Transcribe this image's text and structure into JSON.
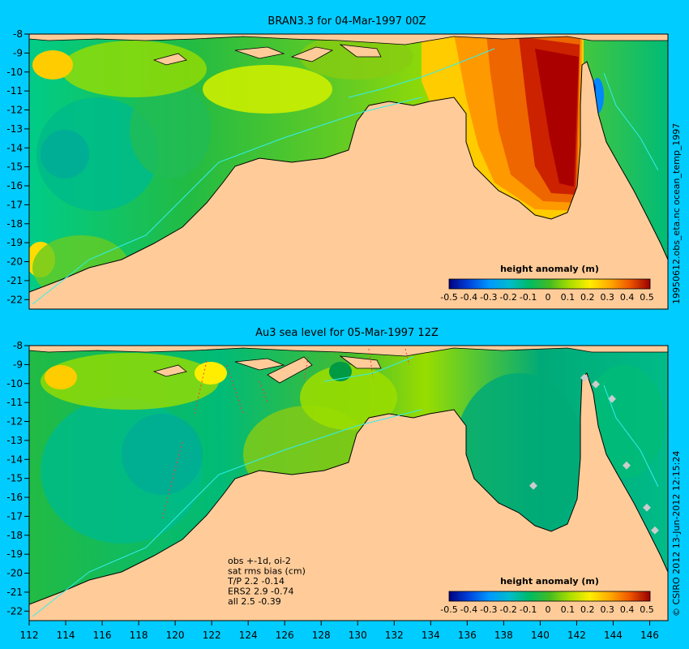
{
  "panels": [
    {
      "title": "BRAN3.3 for 04-Mar-1997 00Z",
      "colorbar": {
        "label": "height anomaly (m)",
        "ticks": [
          "-0.5",
          "-0.4",
          "-0.3",
          "-0.2",
          "-0.1",
          "0",
          "0.1",
          "0.2",
          "0.3",
          "0.4",
          "0.5"
        ]
      }
    },
    {
      "title": "Au3 sea level  for 05-Mar-1997 12Z",
      "colorbar": {
        "label": "height anomaly (m)",
        "ticks": [
          "-0.5",
          "-0.4",
          "-0.3",
          "-0.2",
          "-0.1",
          "0",
          "0.1",
          "0.2",
          "0.3",
          "0.4",
          "0.5"
        ]
      },
      "stats": [
        "obs +-1d, oi-2",
        "sat rms bias (cm)",
        "T/P  2.2 -0.14",
        "ERS2 2.9 -0.74",
        "all 2.5 -0.39"
      ]
    }
  ],
  "axes": {
    "lon_ticks": [
      112,
      114,
      116,
      118,
      120,
      122,
      124,
      126,
      128,
      130,
      132,
      134,
      136,
      138,
      140,
      142,
      144,
      146
    ],
    "lat_ticks": [
      -8,
      -9,
      -10,
      -11,
      -12,
      -13,
      -14,
      -15,
      -16,
      -17,
      -18,
      -19,
      -20,
      -21,
      -22
    ],
    "lon_range": [
      112,
      147
    ],
    "lat_range": [
      -8,
      -22.5
    ]
  },
  "side_labels": {
    "top": "19950612.obs_eta.nc    ocean_temp_1997",
    "bottom": "© CSIRO 2012  13-Jun-2012 12:15:24"
  },
  "colors": {
    "background": "#00ccff",
    "land": "#ffcc99",
    "scale": [
      "#000080",
      "#0033cc",
      "#0088ff",
      "#00bbdd",
      "#00cc99",
      "#22bb44",
      "#66cc22",
      "#99dd00",
      "#ccee00",
      "#ffee00",
      "#ffcc00",
      "#ffaa00",
      "#ff8800",
      "#ee6600",
      "#dd3300",
      "#bb0000",
      "#990000"
    ]
  }
}
